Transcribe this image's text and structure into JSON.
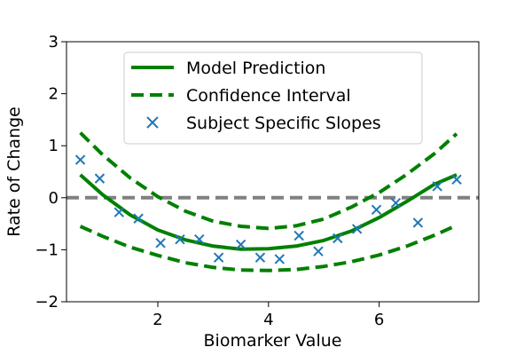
{
  "chart_data": {
    "type": "line",
    "title": "",
    "xlabel": "Biomarker Value",
    "ylabel": "Rate of Change",
    "xlim": [
      0.35,
      7.8
    ],
    "ylim": [
      -2,
      3
    ],
    "xticks": [
      2,
      4,
      6
    ],
    "yticks": [
      -2,
      -1,
      0,
      1,
      2,
      3
    ],
    "grid": false,
    "legend": {
      "placement": "top-center",
      "entries": [
        "Model Prediction",
        "Confidence Interval",
        "Subject Specific Slopes"
      ]
    },
    "reference_line": {
      "y": 0,
      "style": "dashed",
      "color": "#808080"
    },
    "series": [
      {
        "name": "Model Prediction",
        "kind": "line",
        "style": "solid",
        "color": "#008000",
        "x": [
          0.6,
          1.0,
          1.5,
          2.0,
          2.5,
          3.0,
          3.5,
          4.0,
          4.5,
          5.0,
          5.5,
          6.0,
          6.5,
          7.0,
          7.4
        ],
        "y": [
          0.44,
          0.06,
          -0.33,
          -0.62,
          -0.81,
          -0.93,
          -0.99,
          -0.98,
          -0.93,
          -0.82,
          -0.64,
          -0.38,
          -0.07,
          0.26,
          0.44
        ]
      },
      {
        "name": "Confidence Interval",
        "kind": "line",
        "style": "dashed",
        "color": "#008000",
        "x": [
          0.6,
          1.0,
          1.5,
          2.0,
          2.5,
          3.0,
          3.5,
          4.0,
          4.5,
          5.0,
          5.5,
          6.0,
          6.5,
          7.0,
          7.4
        ],
        "y": [
          1.25,
          0.83,
          0.38,
          0.02,
          -0.26,
          -0.45,
          -0.55,
          -0.59,
          -0.54,
          -0.41,
          -0.18,
          0.1,
          0.45,
          0.85,
          1.23
        ]
      },
      {
        "name": "",
        "kind": "line",
        "style": "dashed",
        "color": "#008000",
        "x": [
          0.6,
          1.0,
          1.5,
          2.0,
          2.5,
          3.0,
          3.5,
          4.0,
          4.5,
          5.0,
          5.5,
          6.0,
          6.5,
          7.0,
          7.4
        ],
        "y": [
          -0.55,
          -0.74,
          -0.95,
          -1.11,
          -1.25,
          -1.34,
          -1.39,
          -1.4,
          -1.38,
          -1.32,
          -1.23,
          -1.1,
          -0.93,
          -0.72,
          -0.53
        ]
      },
      {
        "name": "Subject Specific Slopes",
        "kind": "scatter",
        "marker": "x",
        "color": "#1f77b4",
        "x": [
          0.6,
          0.95,
          1.3,
          1.65,
          2.05,
          2.4,
          2.75,
          3.1,
          3.5,
          3.85,
          4.2,
          4.55,
          4.9,
          5.25,
          5.6,
          5.95,
          6.3,
          6.7,
          7.05,
          7.4
        ],
        "y": [
          0.73,
          0.37,
          -0.28,
          -0.4,
          -0.87,
          -0.8,
          -0.8,
          -1.15,
          -0.9,
          -1.15,
          -1.18,
          -0.73,
          -1.03,
          -0.78,
          -0.6,
          -0.23,
          -0.1,
          -0.48,
          0.22,
          0.35
        ]
      }
    ]
  }
}
